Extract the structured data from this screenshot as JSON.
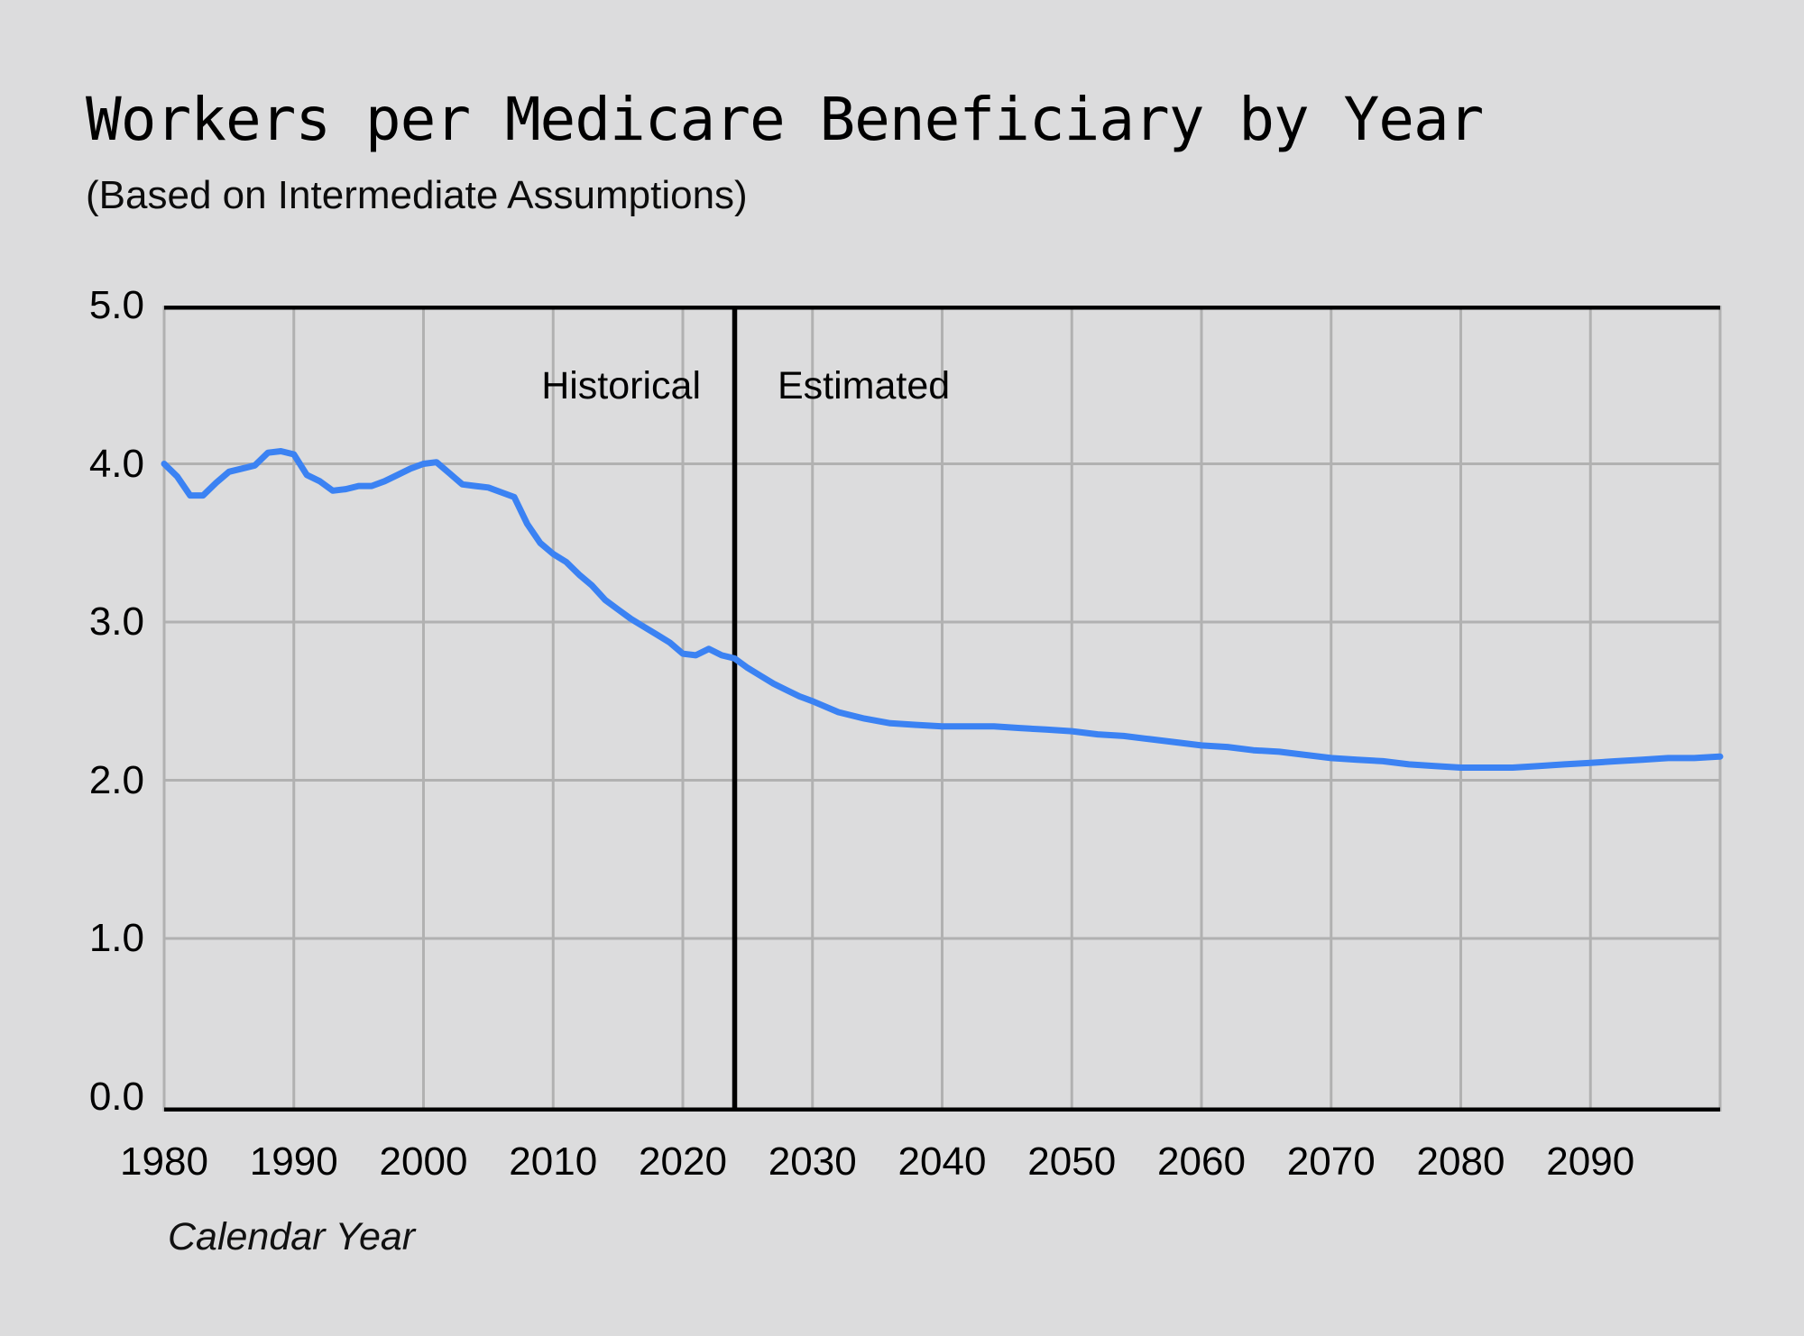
{
  "header": {
    "title": "Workers per Medicare Beneficiary by Year",
    "subtitle": "(Based on Intermediate Assumptions)"
  },
  "chart_data": {
    "type": "line",
    "title": "Workers per Medicare Beneficiary by Year",
    "subtitle": "(Based on Intermediate Assumptions)",
    "xlabel": "Calendar Year",
    "ylabel": "",
    "xlim": [
      1980,
      2100
    ],
    "ylim": [
      0,
      5
    ],
    "grid": true,
    "x_grid_step": 10,
    "xtick_labels": [
      "1980",
      "1990",
      "2000",
      "2010",
      "2020",
      "2030",
      "2040",
      "2050",
      "2060",
      "2070",
      "2080",
      "2090"
    ],
    "xtick_years": [
      1980,
      1990,
      2000,
      2010,
      2020,
      2030,
      2040,
      2050,
      2060,
      2070,
      2080,
      2090
    ],
    "ytick_values": [
      5,
      4,
      3,
      2,
      1,
      0
    ],
    "ytick_labels": [
      "5.0",
      "4.0",
      "3.0",
      "2.0",
      "1.0",
      "0.0"
    ],
    "divider": {
      "year": 2024,
      "label_left": "Historical",
      "label_right": "Estimated"
    },
    "colors": {
      "line": "#3b82f3",
      "grid": "#b1b1b1",
      "axis": "#000000",
      "background": "#dcdcdd"
    },
    "series": [
      {
        "name": "Workers per Medicare Beneficiary",
        "segment_boundary_year": 2024,
        "color": "#3b82f3",
        "points": [
          [
            1980,
            4.0
          ],
          [
            1981,
            3.92
          ],
          [
            1982,
            3.8
          ],
          [
            1983,
            3.8
          ],
          [
            1984,
            3.88
          ],
          [
            1985,
            3.95
          ],
          [
            1986,
            3.97
          ],
          [
            1987,
            3.99
          ],
          [
            1988,
            4.07
          ],
          [
            1989,
            4.08
          ],
          [
            1990,
            4.06
          ],
          [
            1991,
            3.93
          ],
          [
            1992,
            3.89
          ],
          [
            1993,
            3.83
          ],
          [
            1994,
            3.84
          ],
          [
            1995,
            3.86
          ],
          [
            1996,
            3.86
          ],
          [
            1997,
            3.89
          ],
          [
            1998,
            3.93
          ],
          [
            1999,
            3.97
          ],
          [
            2000,
            4.0
          ],
          [
            2001,
            4.01
          ],
          [
            2002,
            3.94
          ],
          [
            2003,
            3.87
          ],
          [
            2004,
            3.86
          ],
          [
            2005,
            3.85
          ],
          [
            2006,
            3.82
          ],
          [
            2007,
            3.79
          ],
          [
            2008,
            3.62
          ],
          [
            2009,
            3.5
          ],
          [
            2010,
            3.43
          ],
          [
            2011,
            3.38
          ],
          [
            2012,
            3.3
          ],
          [
            2013,
            3.23
          ],
          [
            2014,
            3.14
          ],
          [
            2015,
            3.08
          ],
          [
            2016,
            3.02
          ],
          [
            2017,
            2.97
          ],
          [
            2018,
            2.92
          ],
          [
            2019,
            2.87
          ],
          [
            2020,
            2.8
          ],
          [
            2021,
            2.79
          ],
          [
            2022,
            2.83
          ],
          [
            2023,
            2.79
          ],
          [
            2024,
            2.77
          ],
          [
            2025,
            2.71
          ],
          [
            2026,
            2.66
          ],
          [
            2027,
            2.61
          ],
          [
            2028,
            2.57
          ],
          [
            2029,
            2.53
          ],
          [
            2030,
            2.5
          ],
          [
            2032,
            2.43
          ],
          [
            2034,
            2.39
          ],
          [
            2036,
            2.36
          ],
          [
            2038,
            2.35
          ],
          [
            2040,
            2.34
          ],
          [
            2042,
            2.34
          ],
          [
            2044,
            2.34
          ],
          [
            2046,
            2.33
          ],
          [
            2048,
            2.32
          ],
          [
            2050,
            2.31
          ],
          [
            2052,
            2.29
          ],
          [
            2054,
            2.28
          ],
          [
            2056,
            2.26
          ],
          [
            2058,
            2.24
          ],
          [
            2060,
            2.22
          ],
          [
            2062,
            2.21
          ],
          [
            2064,
            2.19
          ],
          [
            2066,
            2.18
          ],
          [
            2068,
            2.16
          ],
          [
            2070,
            2.14
          ],
          [
            2072,
            2.13
          ],
          [
            2074,
            2.12
          ],
          [
            2076,
            2.1
          ],
          [
            2078,
            2.09
          ],
          [
            2080,
            2.08
          ],
          [
            2082,
            2.08
          ],
          [
            2084,
            2.08
          ],
          [
            2086,
            2.09
          ],
          [
            2088,
            2.1
          ],
          [
            2090,
            2.11
          ],
          [
            2092,
            2.12
          ],
          [
            2094,
            2.13
          ],
          [
            2096,
            2.14
          ],
          [
            2098,
            2.14
          ],
          [
            2100,
            2.15
          ]
        ]
      }
    ]
  }
}
